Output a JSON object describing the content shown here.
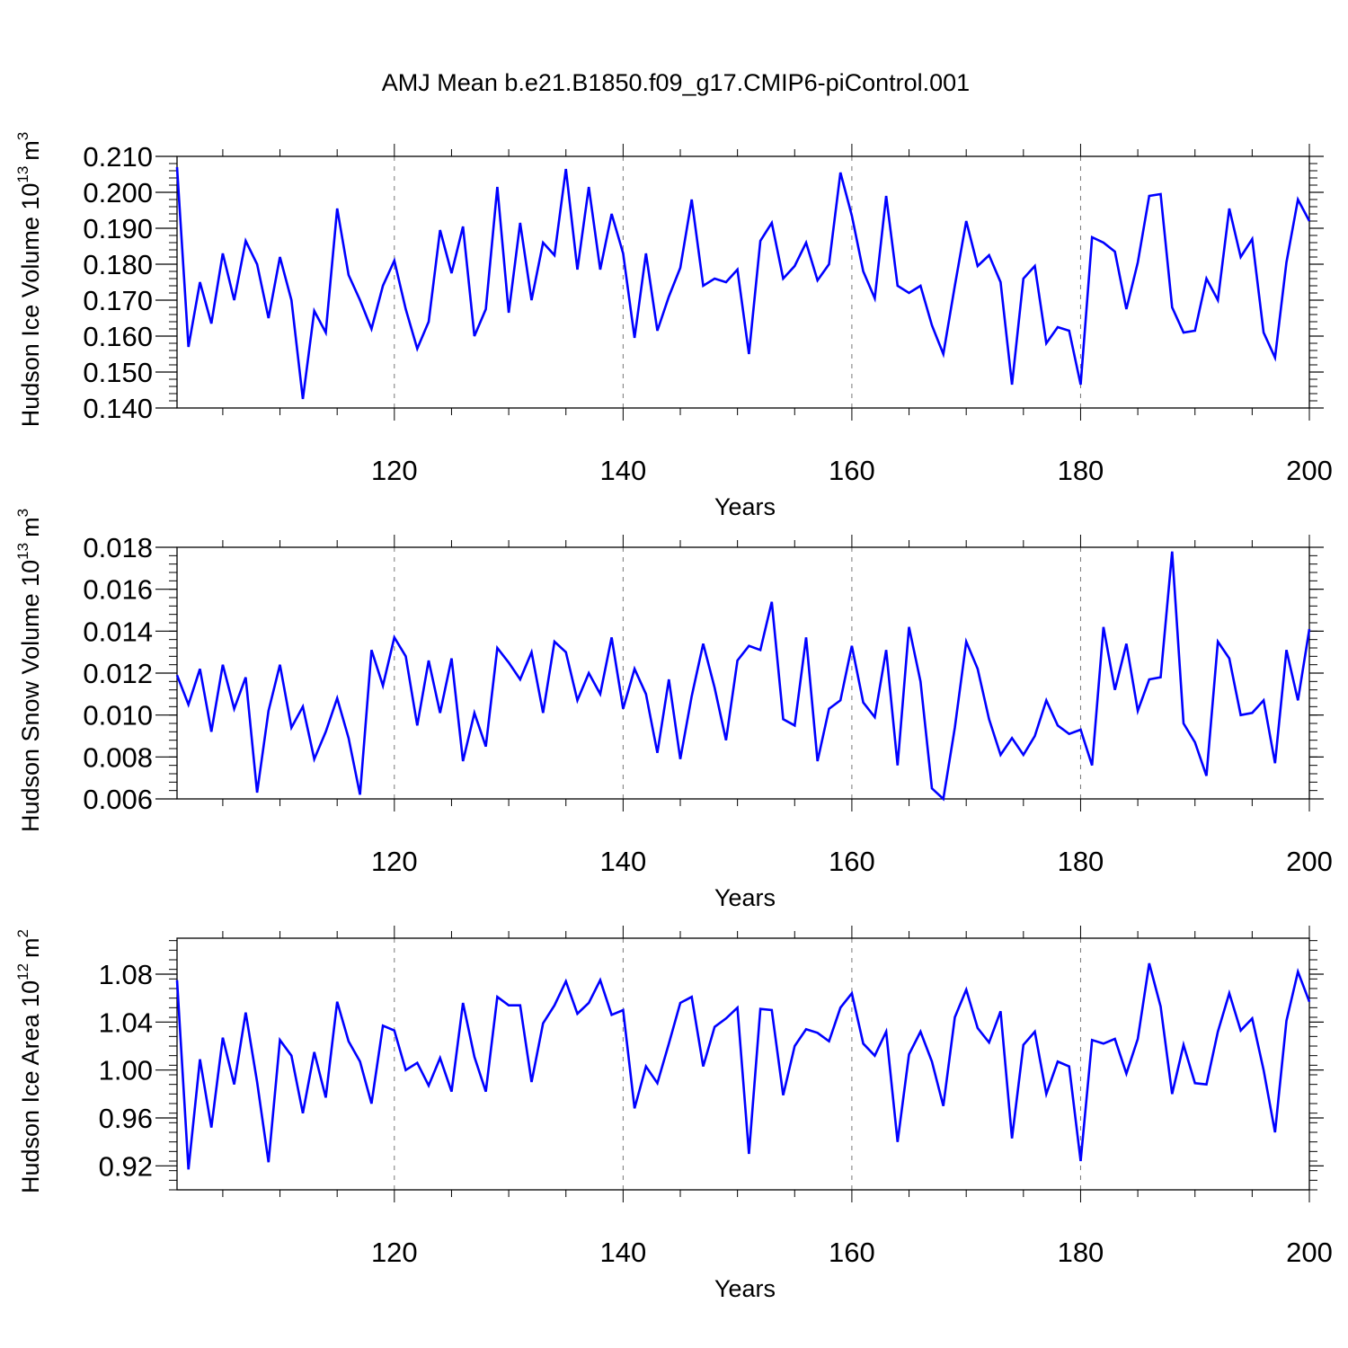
{
  "figure": {
    "title": "AMJ Mean b.e21.B1850.f09_g17.CMIP6-piControl.001",
    "line_color": "#0000ff",
    "grid_color": "#777777"
  },
  "chart_data": [
    {
      "type": "line",
      "ylabel": "Hudson Ice Volume 10",
      "ylabel_exponent": "13",
      "ylabel_unit": "m",
      "ylabel_unit_exponent": "3",
      "xlabel": "Years",
      "xlim": [
        101,
        200
      ],
      "ylim": [
        0.14,
        0.21
      ],
      "xticks": [
        120,
        140,
        160,
        180,
        200
      ],
      "xtick_labels": [
        "120",
        "140",
        "160",
        "180",
        "200"
      ],
      "yticks": [
        0.14,
        0.15,
        0.16,
        0.17,
        0.18,
        0.19,
        0.2,
        0.21
      ],
      "ytick_labels": [
        "0.140",
        "0.150",
        "0.160",
        "0.170",
        "0.180",
        "0.190",
        "0.200",
        "0.210"
      ],
      "grid_x": [
        120,
        140,
        160,
        180
      ],
      "series": [
        {
          "name": "Hudson Ice Volume",
          "values": [
            0.207,
            0.157,
            0.175,
            0.1635,
            0.183,
            0.17,
            0.1865,
            0.18,
            0.165,
            0.182,
            0.17,
            0.1425,
            0.167,
            0.161,
            0.1955,
            0.177,
            0.17,
            0.162,
            0.174,
            0.181,
            0.1675,
            0.1565,
            0.164,
            0.1895,
            0.1775,
            0.1905,
            0.16,
            0.1675,
            0.2015,
            0.1665,
            0.1915,
            0.17,
            0.186,
            0.1825,
            0.2065,
            0.1785,
            0.2015,
            0.1785,
            0.194,
            0.183,
            0.1595,
            0.183,
            0.1615,
            0.171,
            0.179,
            0.198,
            0.174,
            0.176,
            0.175,
            0.1785,
            0.155,
            0.1865,
            0.1915,
            0.176,
            0.1795,
            0.186,
            0.1755,
            0.18,
            0.2055,
            0.1935,
            0.178,
            0.1705,
            0.199,
            0.174,
            0.172,
            0.174,
            0.163,
            0.155,
            0.174,
            0.192,
            0.1795,
            0.1825,
            0.175,
            0.1465,
            0.176,
            0.1795,
            0.158,
            0.1625,
            0.1615,
            0.1465,
            0.1875,
            0.186,
            0.1835,
            0.1675,
            0.1805,
            0.199,
            0.1995,
            0.168,
            0.161,
            0.1615,
            0.176,
            0.17,
            0.1955,
            0.182,
            0.187,
            0.161,
            0.154,
            0.1805,
            0.198,
            0.192
          ]
        }
      ]
    },
    {
      "type": "line",
      "ylabel": "Hudson Snow Volume 10",
      "ylabel_exponent": "13",
      "ylabel_unit": "m",
      "ylabel_unit_exponent": "3",
      "xlabel": "Years",
      "xlim": [
        101,
        200
      ],
      "ylim": [
        0.006,
        0.018
      ],
      "xticks": [
        120,
        140,
        160,
        180,
        200
      ],
      "xtick_labels": [
        "120",
        "140",
        "160",
        "180",
        "200"
      ],
      "yticks": [
        0.006,
        0.008,
        0.01,
        0.012,
        0.014,
        0.016,
        0.018
      ],
      "ytick_labels": [
        "0.006",
        "0.008",
        "0.010",
        "0.012",
        "0.014",
        "0.016",
        "0.018"
      ],
      "grid_x": [
        120,
        140,
        160,
        180
      ],
      "series": [
        {
          "name": "Hudson Snow Volume",
          "values": [
            0.0119,
            0.0105,
            0.0122,
            0.0092,
            0.0124,
            0.0103,
            0.0118,
            0.0063,
            0.0102,
            0.0124,
            0.0094,
            0.0104,
            0.0079,
            0.0092,
            0.0108,
            0.0089,
            0.0062,
            0.0131,
            0.0114,
            0.0137,
            0.0128,
            0.0095,
            0.0126,
            0.0101,
            0.0127,
            0.0078,
            0.0101,
            0.0085,
            0.0132,
            0.0125,
            0.0117,
            0.013,
            0.0101,
            0.0135,
            0.013,
            0.0107,
            0.012,
            0.011,
            0.0137,
            0.0103,
            0.0122,
            0.011,
            0.0082,
            0.0117,
            0.0079,
            0.0109,
            0.0134,
            0.0113,
            0.0088,
            0.0126,
            0.0133,
            0.0131,
            0.0154,
            0.0098,
            0.0095,
            0.0137,
            0.0078,
            0.0103,
            0.0107,
            0.0133,
            0.0106,
            0.0099,
            0.0131,
            0.0076,
            0.0142,
            0.0116,
            0.0065,
            0.006,
            0.0094,
            0.0135,
            0.0122,
            0.0098,
            0.0081,
            0.0089,
            0.0081,
            0.009,
            0.0107,
            0.0095,
            0.0091,
            0.0093,
            0.0076,
            0.0142,
            0.0112,
            0.0134,
            0.0102,
            0.0117,
            0.0118,
            0.0178,
            0.0096,
            0.0087,
            0.0071,
            0.0135,
            0.0127,
            0.01,
            0.0101,
            0.0107,
            0.0077,
            0.0131,
            0.0107,
            0.0141
          ]
        }
      ]
    },
    {
      "type": "line",
      "ylabel": "Hudson Ice Area 10",
      "ylabel_exponent": "12",
      "ylabel_unit": "m",
      "ylabel_unit_exponent": "2",
      "xlabel": "Years",
      "xlim": [
        101,
        200
      ],
      "ylim": [
        0.9,
        1.11
      ],
      "xticks": [
        120,
        140,
        160,
        180,
        200
      ],
      "xtick_labels": [
        "120",
        "140",
        "160",
        "180",
        "200"
      ],
      "yticks": [
        0.92,
        0.96,
        1.0,
        1.04,
        1.08
      ],
      "ytick_labels": [
        "0.92",
        "0.96",
        "1.00",
        "1.04",
        "1.08"
      ],
      "grid_x": [
        120,
        140,
        160,
        180
      ],
      "series": [
        {
          "name": "Hudson Ice Area",
          "values": [
            1.075,
            0.917,
            1.009,
            0.952,
            1.027,
            0.988,
            1.048,
            0.99,
            0.923,
            1.025,
            1.012,
            0.964,
            1.015,
            0.977,
            1.057,
            1.024,
            1.007,
            0.972,
            1.037,
            1.033,
            1.0,
            1.006,
            0.987,
            1.01,
            0.982,
            1.056,
            1.011,
            0.982,
            1.061,
            1.054,
            1.054,
            0.99,
            1.039,
            1.054,
            1.074,
            1.047,
            1.056,
            1.075,
            1.046,
            1.05,
            0.968,
            1.003,
            0.989,
            1.022,
            1.056,
            1.061,
            1.003,
            1.036,
            1.043,
            1.052,
            0.93,
            1.051,
            1.05,
            0.979,
            1.02,
            1.034,
            1.031,
            1.024,
            1.052,
            1.064,
            1.022,
            1.012,
            1.032,
            0.94,
            1.013,
            1.032,
            1.007,
            0.97,
            1.044,
            1.067,
            1.035,
            1.023,
            1.049,
            0.943,
            1.021,
            1.032,
            0.98,
            1.007,
            1.003,
            0.924,
            1.025,
            1.022,
            1.026,
            0.997,
            1.026,
            1.089,
            1.053,
            0.98,
            1.021,
            0.989,
            0.988,
            1.032,
            1.064,
            1.033,
            1.043,
            1.0,
            0.948,
            1.041,
            1.082,
            1.057
          ]
        }
      ]
    }
  ]
}
